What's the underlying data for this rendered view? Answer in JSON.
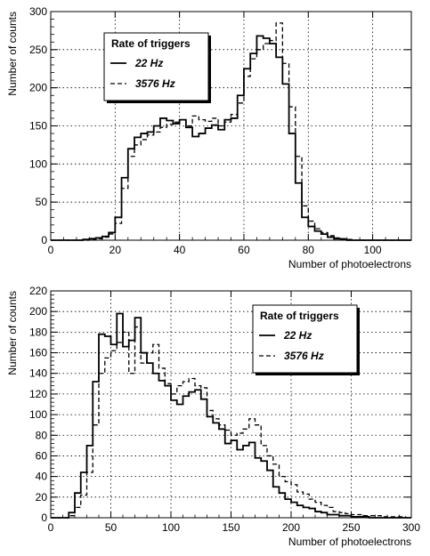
{
  "chart_data": [
    {
      "type": "histogram",
      "xlabel": "Number of photoelectrons",
      "ylabel": "Number of counts",
      "xlim": [
        0,
        112
      ],
      "ylim": [
        0,
        300
      ],
      "xticks": [
        0,
        20,
        40,
        60,
        80,
        100
      ],
      "yticks": [
        0,
        50,
        100,
        150,
        200,
        250,
        300
      ],
      "grid": true,
      "legend": {
        "title": "Rate of triggers",
        "placement": "top-left"
      },
      "bin_width": 2,
      "x_start": 0,
      "series": [
        {
          "name": "22 Hz",
          "style": "solid",
          "values": [
            0,
            0,
            0,
            0,
            0,
            1,
            2,
            3,
            5,
            10,
            30,
            82,
            120,
            135,
            140,
            142,
            150,
            160,
            157,
            153,
            158,
            148,
            136,
            140,
            147,
            151,
            145,
            158,
            160,
            190,
            225,
            245,
            268,
            265,
            258,
            240,
            205,
            140,
            75,
            30,
            18,
            12,
            8,
            4,
            2,
            1,
            0,
            0,
            0,
            0,
            0,
            0,
            0,
            0,
            0,
            0
          ]
        },
        {
          "name": "3576 Hz",
          "style": "dashed",
          "values": [
            0,
            0,
            0,
            0,
            0,
            0,
            1,
            2,
            4,
            8,
            22,
            68,
            110,
            125,
            132,
            138,
            142,
            148,
            152,
            155,
            158,
            150,
            163,
            158,
            156,
            160,
            150,
            155,
            165,
            180,
            215,
            238,
            250,
            258,
            262,
            285,
            232,
            175,
            110,
            45,
            25,
            15,
            10,
            6,
            3,
            2,
            1,
            0,
            0,
            0,
            0,
            0,
            0,
            0,
            0,
            0
          ]
        }
      ]
    },
    {
      "type": "histogram",
      "xlabel": "Number of photoelectrons",
      "ylabel": "Number of counts",
      "xlim": [
        0,
        300
      ],
      "ylim": [
        0,
        220
      ],
      "xticks": [
        0,
        50,
        100,
        150,
        200,
        250,
        300
      ],
      "yticks": [
        0,
        20,
        40,
        60,
        80,
        100,
        120,
        140,
        160,
        180,
        200,
        220
      ],
      "grid": true,
      "legend": {
        "title": "Rate of triggers",
        "placement": "top-right"
      },
      "bin_width": 5,
      "x_start": 0,
      "series": [
        {
          "name": "22 Hz",
          "style": "solid",
          "values": [
            0,
            0,
            0,
            5,
            24,
            44,
            70,
            132,
            178,
            176,
            168,
            198,
            166,
            172,
            194,
            160,
            150,
            140,
            133,
            128,
            114,
            110,
            118,
            122,
            124,
            115,
            98,
            92,
            86,
            72,
            75,
            66,
            70,
            73,
            58,
            55,
            46,
            30,
            24,
            18,
            15,
            12,
            10,
            9,
            6,
            5,
            3,
            3,
            2,
            2,
            1,
            1,
            1,
            0,
            0,
            0,
            0,
            0,
            0,
            0
          ]
        },
        {
          "name": "3576 Hz",
          "style": "dashed",
          "values": [
            0,
            0,
            0,
            2,
            10,
            22,
            44,
            90,
            140,
            155,
            162,
            170,
            180,
            140,
            185,
            150,
            160,
            168,
            145,
            130,
            120,
            128,
            132,
            135,
            128,
            126,
            104,
            96,
            90,
            85,
            80,
            82,
            86,
            96,
            90,
            70,
            60,
            52,
            40,
            35,
            32,
            25,
            23,
            18,
            15,
            12,
            10,
            6,
            5,
            4,
            3,
            3,
            2,
            2,
            2,
            1,
            1,
            1,
            1,
            0
          ]
        }
      ]
    }
  ]
}
